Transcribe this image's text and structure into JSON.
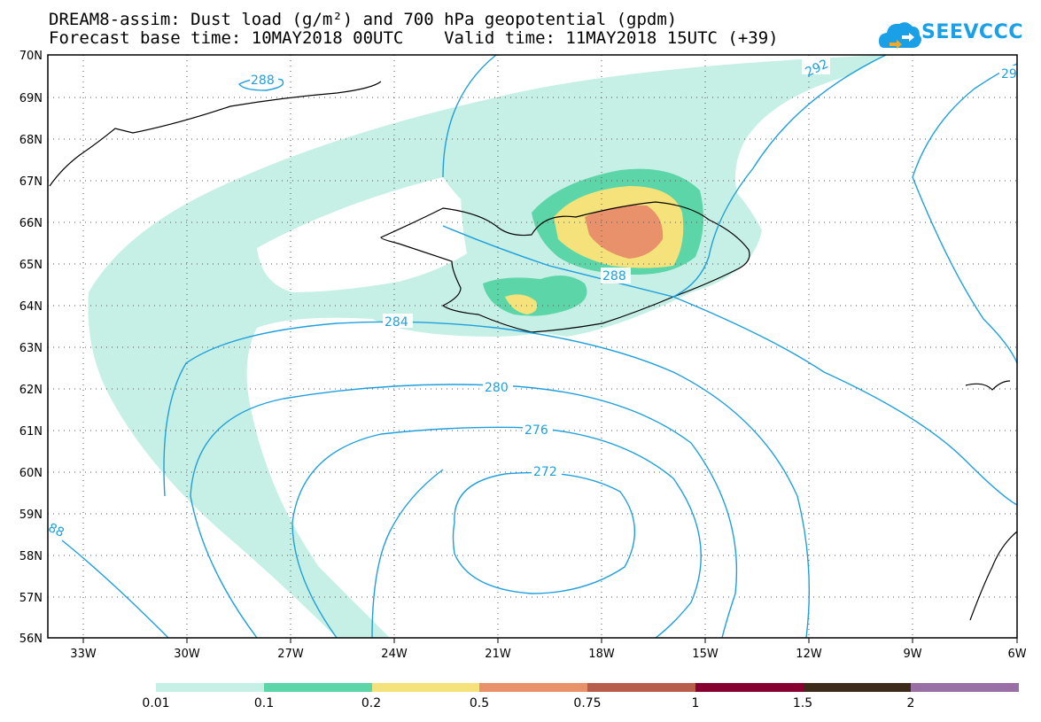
{
  "title": {
    "line1": "DREAM8-assim: Dust load (g/m²) and 700 hPa geopotential (gpdm)",
    "line2": "Forecast base time: 10MAY2018 00UTC    Valid time: 11MAY2018 15UTC (+39)"
  },
  "logo": {
    "text": "SEEVCCC",
    "icon": "cloud-icon",
    "color": "#1aa0e6"
  },
  "map": {
    "lon_labels": [
      "33W",
      "30W",
      "27W",
      "24W",
      "21W",
      "18W",
      "15W",
      "12W",
      "9W",
      "6W"
    ],
    "lat_labels": [
      "70N",
      "69N",
      "68N",
      "67N",
      "66N",
      "65N",
      "64N",
      "63N",
      "62N",
      "61N",
      "60N",
      "59N",
      "58N",
      "57N",
      "56N"
    ],
    "contour_labels": [
      "288",
      "292",
      "29",
      "288",
      "284",
      "280",
      "276",
      "272",
      "88"
    ],
    "contour_color": "#1f9fdc"
  },
  "colorbar": {
    "colors": [
      "#c6f0e6",
      "#5cd6a8",
      "#f5e27a",
      "#e8916a",
      "#b85c4c",
      "#860030",
      "#3e2a18",
      "#9a6fa6"
    ],
    "labels": [
      "0.01",
      "0.1",
      "0.2",
      "0.5",
      "0.75",
      "1",
      "1.5",
      "2"
    ]
  }
}
